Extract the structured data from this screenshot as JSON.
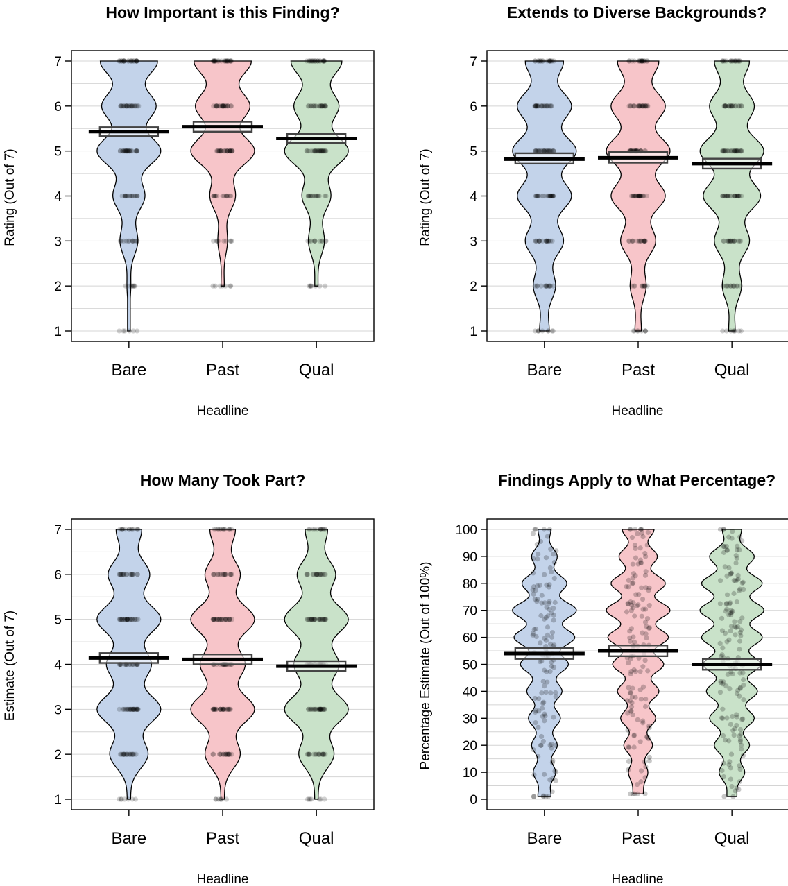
{
  "figure": {
    "colors": {
      "Bare": "#c3d3ea",
      "Past": "#f7c5c9",
      "Qual": "#c9e2c9"
    }
  },
  "chart_data": [
    {
      "type": "violin",
      "title": "How Important is this Finding?",
      "xlabel": "Headline",
      "ylabel": "Rating (Out of 7)",
      "categories": [
        "Bare",
        "Past",
        "Qual"
      ],
      "ylim": [
        1,
        7
      ],
      "yticks": [
        1,
        2,
        3,
        4,
        5,
        6,
        7
      ],
      "grid": true,
      "means": [
        5.43,
        5.54,
        5.28
      ],
      "hdi": [
        [
          5.33,
          5.53
        ],
        [
          5.43,
          5.65
        ],
        [
          5.18,
          5.38
        ]
      ],
      "distributions": [
        {
          "min": 1,
          "max": 7,
          "levels": [
            1,
            2,
            3,
            4,
            5,
            6,
            7
          ],
          "density": [
            0.02,
            0.06,
            0.28,
            0.5,
            1.0,
            0.85,
            0.9
          ]
        },
        {
          "min": 2,
          "max": 7,
          "levels": [
            2,
            3,
            4,
            5,
            6,
            7
          ],
          "density": [
            0.05,
            0.15,
            0.4,
            1.0,
            0.85,
            0.9
          ]
        },
        {
          "min": 2,
          "max": 7,
          "levels": [
            2,
            3,
            4,
            5,
            6,
            7
          ],
          "density": [
            0.05,
            0.25,
            0.45,
            1.0,
            0.7,
            0.8
          ]
        }
      ]
    },
    {
      "type": "violin",
      "title": "Extends to Diverse Backgrounds?",
      "xlabel": "Headline",
      "ylabel": "Rating (Out of 7)",
      "categories": [
        "Bare",
        "Past",
        "Qual"
      ],
      "ylim": [
        1,
        7
      ],
      "yticks": [
        1,
        2,
        3,
        4,
        5,
        6,
        7
      ],
      "grid": true,
      "means": [
        4.82,
        4.85,
        4.72
      ],
      "hdi": [
        [
          4.72,
          4.95
        ],
        [
          4.74,
          4.98
        ],
        [
          4.61,
          4.83
        ]
      ],
      "distributions": [
        {
          "min": 1,
          "max": 7,
          "levels": [
            1,
            2,
            3,
            4,
            5,
            6,
            7
          ],
          "density": [
            0.15,
            0.35,
            0.6,
            0.85,
            1.0,
            0.85,
            0.6
          ]
        },
        {
          "min": 1,
          "max": 7,
          "levels": [
            1,
            2,
            3,
            4,
            5,
            6,
            7
          ],
          "density": [
            0.1,
            0.25,
            0.55,
            0.85,
            1.0,
            0.85,
            0.65
          ]
        },
        {
          "min": 1,
          "max": 7,
          "levels": [
            1,
            2,
            3,
            4,
            5,
            6,
            7
          ],
          "density": [
            0.1,
            0.3,
            0.55,
            0.9,
            1.0,
            0.7,
            0.55
          ]
        }
      ]
    },
    {
      "type": "violin",
      "title": "How Many Took Part?",
      "xlabel": "Headline",
      "ylabel": "Estimate (Out of 7)",
      "categories": [
        "Bare",
        "Past",
        "Qual"
      ],
      "ylim": [
        1,
        7
      ],
      "yticks": [
        1,
        2,
        3,
        4,
        5,
        6,
        7
      ],
      "grid": true,
      "means": [
        4.14,
        4.11,
        3.96
      ],
      "hdi": [
        [
          4.03,
          4.25
        ],
        [
          4.0,
          4.22
        ],
        [
          3.85,
          4.07
        ]
      ],
      "distributions": [
        {
          "min": 1,
          "max": 7,
          "levels": [
            1,
            2,
            3,
            4,
            5,
            6,
            7
          ],
          "density": [
            0.05,
            0.6,
            1.0,
            0.7,
            1.0,
            0.65,
            0.4
          ]
        },
        {
          "min": 1,
          "max": 7,
          "levels": [
            1,
            2,
            3,
            4,
            5,
            6,
            7
          ],
          "density": [
            0.05,
            0.55,
            1.0,
            0.7,
            1.0,
            0.55,
            0.4
          ]
        },
        {
          "min": 1,
          "max": 7,
          "levels": [
            1,
            2,
            3,
            4,
            5,
            6,
            7
          ],
          "density": [
            0.05,
            0.55,
            1.0,
            0.7,
            1.0,
            0.6,
            0.35
          ]
        }
      ]
    },
    {
      "type": "violin",
      "title": "Findings Apply to What Percentage?",
      "xlabel": "Headline",
      "ylabel": "Percentage Estimate (Out of 100%)",
      "categories": [
        "Bare",
        "Past",
        "Qual"
      ],
      "ylim": [
        0,
        100
      ],
      "yticks": [
        0,
        10,
        20,
        30,
        40,
        50,
        60,
        70,
        80,
        90,
        100
      ],
      "grid": true,
      "means": [
        54,
        55,
        50
      ],
      "hdi": [
        [
          52,
          56
        ],
        [
          53,
          57
        ],
        [
          48,
          52
        ]
      ],
      "distributions": [
        {
          "min": 1,
          "max": 100,
          "levels": [
            1,
            10,
            20,
            30,
            40,
            50,
            60,
            70,
            80,
            90,
            100
          ],
          "density": [
            0.2,
            0.35,
            0.4,
            0.5,
            0.55,
            0.75,
            0.95,
            1.0,
            0.7,
            0.4,
            0.2
          ]
        },
        {
          "min": 2,
          "max": 100,
          "levels": [
            2,
            10,
            20,
            30,
            40,
            50,
            60,
            70,
            80,
            90,
            100
          ],
          "density": [
            0.15,
            0.3,
            0.45,
            0.55,
            0.65,
            0.8,
            0.95,
            1.0,
            0.85,
            0.6,
            0.5
          ]
        },
        {
          "min": 1,
          "max": 100,
          "levels": [
            1,
            10,
            20,
            30,
            40,
            50,
            60,
            70,
            80,
            90,
            100
          ],
          "density": [
            0.15,
            0.4,
            0.55,
            0.7,
            0.8,
            0.9,
            0.95,
            1.0,
            0.95,
            0.7,
            0.3
          ]
        }
      ]
    }
  ]
}
